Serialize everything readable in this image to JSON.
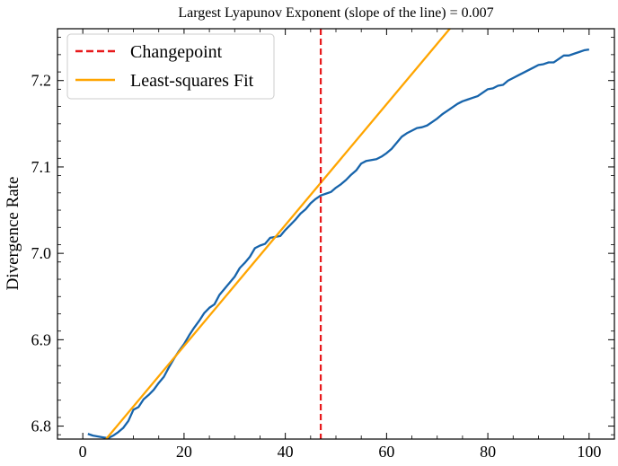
{
  "chart_data": {
    "type": "line",
    "title": "Largest Lyapunov Exponent (slope of the line) = 0.007",
    "xlabel": "",
    "ylabel": "Divergence Rate",
    "xlim": [
      -5,
      105
    ],
    "ylim": [
      6.785,
      7.26
    ],
    "x_ticks": [
      0,
      20,
      40,
      60,
      80,
      100
    ],
    "x_tick_labels": [
      "0",
      "20",
      "40",
      "60",
      "80",
      "100"
    ],
    "y_ticks": [
      6.8,
      6.9,
      7.0,
      7.1,
      7.2
    ],
    "y_tick_labels": [
      "6.8",
      "6.9",
      "7.0",
      "7.1",
      "7.2"
    ],
    "grid": false,
    "legend_position": "top-left",
    "series": [
      {
        "name": "Divergence Rate",
        "legend": false,
        "color": "#1764ab",
        "x": [
          1,
          2,
          3,
          4,
          5,
          6,
          7,
          8,
          9,
          10,
          11,
          12,
          13,
          14,
          15,
          16,
          17,
          18,
          19,
          20,
          21,
          22,
          23,
          24,
          25,
          26,
          27,
          28,
          29,
          30,
          31,
          32,
          33,
          34,
          35,
          36,
          37,
          38,
          39,
          40,
          41,
          42,
          43,
          44,
          45,
          46,
          47,
          48,
          49,
          50,
          51,
          52,
          53,
          54,
          55,
          56,
          57,
          58,
          59,
          60,
          61,
          62,
          63,
          64,
          65,
          66,
          67,
          68,
          69,
          70,
          71,
          72,
          73,
          74,
          75,
          76,
          77,
          78,
          79,
          80,
          81,
          82,
          83,
          84,
          85,
          86,
          87,
          88,
          89,
          90,
          91,
          92,
          93,
          94,
          95,
          96,
          97,
          98,
          99,
          100
        ],
        "values": [
          6.791,
          6.789,
          6.788,
          6.787,
          6.786,
          6.789,
          6.793,
          6.798,
          6.806,
          6.819,
          6.822,
          6.831,
          6.836,
          6.842,
          6.85,
          6.857,
          6.868,
          6.878,
          6.887,
          6.895,
          6.905,
          6.914,
          6.922,
          6.931,
          6.937,
          6.941,
          6.952,
          6.959,
          6.966,
          6.973,
          6.983,
          6.989,
          6.996,
          7.006,
          7.009,
          7.011,
          7.018,
          7.019,
          7.02,
          7.027,
          7.033,
          7.039,
          7.046,
          7.051,
          7.058,
          7.063,
          7.067,
          7.069,
          7.071,
          7.076,
          7.08,
          7.085,
          7.091,
          7.096,
          7.104,
          7.107,
          7.108,
          7.109,
          7.112,
          7.116,
          7.121,
          7.128,
          7.135,
          7.139,
          7.142,
          7.145,
          7.146,
          7.148,
          7.152,
          7.156,
          7.161,
          7.165,
          7.169,
          7.173,
          7.176,
          7.178,
          7.18,
          7.182,
          7.186,
          7.19,
          7.191,
          7.194,
          7.195,
          7.2,
          7.203,
          7.206,
          7.209,
          7.212,
          7.215,
          7.218,
          7.219,
          7.221,
          7.221,
          7.225,
          7.229,
          7.229,
          7.231,
          7.233,
          7.235,
          7.236
        ]
      },
      {
        "name": "Least-squares Fit",
        "color": "#ffa500",
        "slope": 0.007,
        "x": [
          4.6,
          73.2
        ],
        "values": [
          6.785,
          7.265
        ]
      },
      {
        "name": "Changepoint",
        "color": "#e8191b",
        "style": "dashed",
        "vertical_x": 47
      }
    ]
  }
}
